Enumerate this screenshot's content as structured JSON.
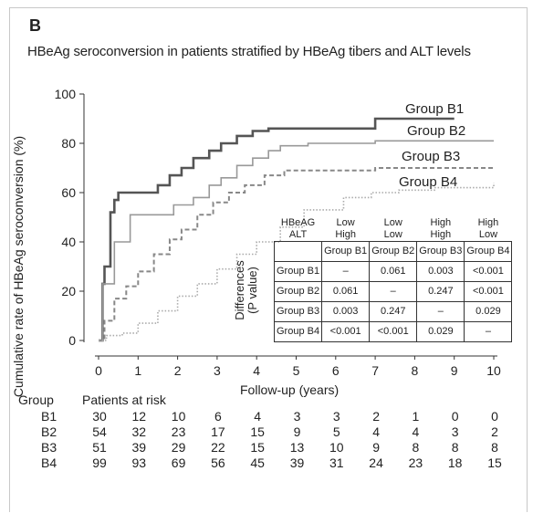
{
  "panel_letter": "B",
  "chart_data": {
    "type": "line",
    "title": "HBeAg seroconversion in patients stratified by HBeAg tibers and ALT levels",
    "xlabel": "Follow-up (years)",
    "ylabel": "Cumulative rate of HBeAg seroconversion (%)",
    "xlim": [
      0,
      10
    ],
    "ylim": [
      0,
      100
    ],
    "xticks": [
      "0",
      "1",
      "2",
      "3",
      "4",
      "5",
      "6",
      "7",
      "8",
      "9",
      "10"
    ],
    "yticks": [
      "0",
      "20",
      "40",
      "60",
      "80",
      "100"
    ],
    "grid": false,
    "series": [
      {
        "name": "Group B1",
        "style": "solid",
        "color": "#555555",
        "x": [
          0,
          0.1,
          0.15,
          0.3,
          0.4,
          0.5,
          0.9,
          1.5,
          1.8,
          2.1,
          2.4,
          2.8,
          3.1,
          3.5,
          3.9,
          4.3,
          6.9,
          7.0,
          9.0
        ],
        "y": [
          0,
          23,
          30,
          52,
          57,
          60,
          60,
          63,
          67,
          70,
          74,
          77,
          80,
          83,
          85,
          86,
          86,
          90,
          90
        ]
      },
      {
        "name": "Group B2",
        "style": "solid",
        "color": "#999999",
        "x": [
          0,
          0.1,
          0.4,
          0.8,
          1.6,
          1.9,
          2.4,
          2.8,
          3.1,
          3.5,
          3.9,
          4.3,
          4.6,
          5.3,
          6.3,
          7.0,
          10.0
        ],
        "y": [
          0,
          23,
          40,
          51,
          51,
          55,
          58,
          63,
          66,
          71,
          74,
          77,
          79,
          80,
          80,
          81,
          81
        ]
      },
      {
        "name": "Group B3",
        "style": "dashed",
        "color": "#888888",
        "x": [
          0,
          0.15,
          0.4,
          0.7,
          1.0,
          1.4,
          1.8,
          2.1,
          2.5,
          2.9,
          3.3,
          3.7,
          4.2,
          4.7,
          6.9,
          7.0,
          10.0
        ],
        "y": [
          0,
          8,
          17,
          22,
          28,
          35,
          41,
          45,
          51,
          56,
          60,
          63,
          67,
          69,
          69,
          70,
          70
        ]
      },
      {
        "name": "Group B4",
        "style": "dotted",
        "color": "#aaaaaa",
        "x": [
          0,
          0.2,
          0.6,
          1.0,
          1.5,
          2.0,
          2.5,
          3.0,
          3.5,
          4.0,
          4.6,
          5.2,
          6.2,
          6.9,
          7.6,
          8.5,
          10.0
        ],
        "y": [
          0,
          2,
          3,
          7,
          12,
          18,
          23,
          29,
          35,
          40,
          46,
          53,
          58,
          60,
          61,
          62,
          64
        ]
      }
    ]
  },
  "table": {
    "row_label": [
      "Differences",
      "(P value)"
    ],
    "header_hbeag": "HBeAG",
    "header_alt": "ALT",
    "levels": [
      {
        "hbeag": "Low",
        "alt": "High"
      },
      {
        "hbeag": "Low",
        "alt": "Low"
      },
      {
        "hbeag": "High",
        "alt": "High"
      },
      {
        "hbeag": "High",
        "alt": "Low"
      }
    ],
    "columns": [
      "Group B1",
      "Group B2",
      "Group B3",
      "Group B4"
    ],
    "rows": [
      {
        "name": "Group B1",
        "values": [
          "–",
          "0.061",
          "0.003",
          "<0.001"
        ]
      },
      {
        "name": "Group B2",
        "values": [
          "0.061",
          "–",
          "0.247",
          "<0.001"
        ]
      },
      {
        "name": "Group B3",
        "values": [
          "0.003",
          "0.247",
          "–",
          "0.029"
        ]
      },
      {
        "name": "Group B4",
        "values": [
          "<0.001",
          "<0.001",
          "0.029",
          "–"
        ]
      }
    ]
  },
  "risk_table": {
    "group_header": "Group",
    "title": "Patients at risk",
    "rows": [
      {
        "group": "B1",
        "values": [
          "30",
          "12",
          "10",
          "6",
          "4",
          "3",
          "3",
          "2",
          "1",
          "0",
          "0"
        ]
      },
      {
        "group": "B2",
        "values": [
          "54",
          "32",
          "23",
          "17",
          "15",
          "9",
          "5",
          "4",
          "4",
          "3",
          "2"
        ]
      },
      {
        "group": "B3",
        "values": [
          "51",
          "39",
          "29",
          "22",
          "15",
          "13",
          "10",
          "9",
          "8",
          "8",
          "8"
        ]
      },
      {
        "group": "B4",
        "values": [
          "99",
          "93",
          "69",
          "56",
          "45",
          "39",
          "31",
          "24",
          "23",
          "18",
          "15"
        ]
      }
    ]
  }
}
